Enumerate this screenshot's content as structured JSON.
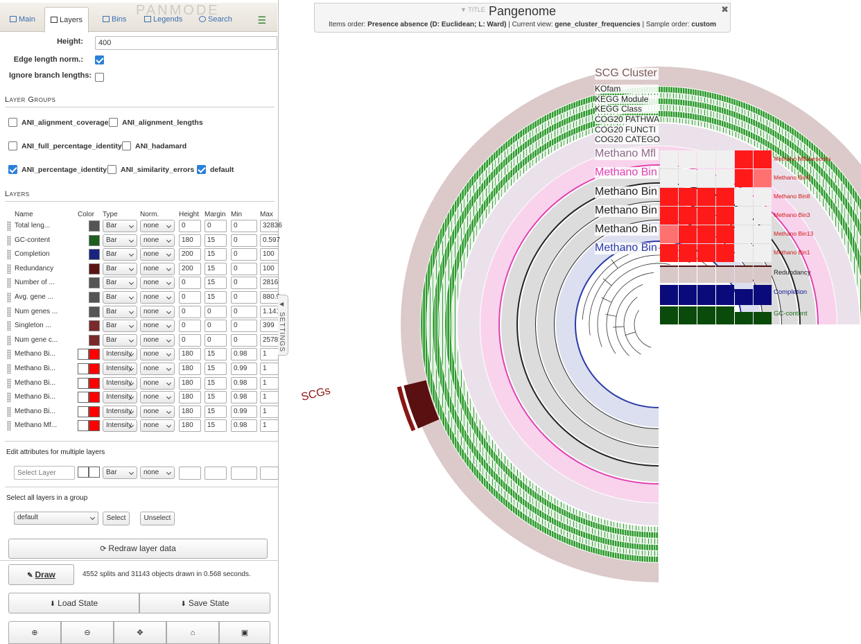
{
  "tabs": [
    {
      "label": "Main",
      "icon": "image-icon"
    },
    {
      "label": "Layers",
      "icon": "layers-icon"
    },
    {
      "label": "Bins",
      "icon": "bins-icon"
    },
    {
      "label": "Legends",
      "icon": "list-icon"
    },
    {
      "label": "Search",
      "icon": "search-icon"
    }
  ],
  "brand": "PANMODE",
  "height": {
    "label": "Height:",
    "value": "400"
  },
  "edge_norm": {
    "label": "Edge length norm.:",
    "checked": true
  },
  "ignore_branch": {
    "label": "Ignore branch lengths:",
    "checked": false
  },
  "layer_groups": {
    "title": "Layer Groups",
    "items": [
      {
        "label": "ANI_alignment_coverage",
        "checked": false
      },
      {
        "label": "ANI_alignment_lengths",
        "checked": false
      },
      {
        "label": "ANI_full_percentage_identity",
        "checked": false
      },
      {
        "label": "ANI_hadamard",
        "checked": false
      },
      {
        "label": "ANI_percentage_identity",
        "checked": true
      },
      {
        "label": "ANI_similarity_errors",
        "checked": false
      },
      {
        "label": "default",
        "checked": true
      }
    ]
  },
  "layers": {
    "title": "Layers",
    "headers": {
      "name": "Name",
      "color": "Color",
      "type": "Type",
      "norm": "Norm.",
      "height": "Height",
      "margin": "Margin",
      "min": "Min",
      "max": "Max"
    },
    "rows": [
      {
        "name": "Total leng...",
        "color": "#555555",
        "type": "Bar",
        "norm": "none",
        "height": "0",
        "margin": "0",
        "min": "0",
        "max": "32836"
      },
      {
        "name": "GC-content",
        "color": "#1e5e1e",
        "type": "Bar",
        "norm": "none",
        "height": "180",
        "margin": "15",
        "min": "0",
        "max": "0.597"
      },
      {
        "name": "Completion",
        "color": "#1a237e",
        "type": "Bar",
        "norm": "none",
        "height": "200",
        "margin": "15",
        "min": "0",
        "max": "100"
      },
      {
        "name": "Redundancy",
        "color": "#5a1414",
        "type": "Bar",
        "norm": "none",
        "height": "200",
        "margin": "15",
        "min": "0",
        "max": "100"
      },
      {
        "name": "Number of ...",
        "color": "#555555",
        "type": "Bar",
        "norm": "none",
        "height": "0",
        "margin": "15",
        "min": "0",
        "max": "2816"
      },
      {
        "name": "Avg. gene ...",
        "color": "#555555",
        "type": "Bar",
        "norm": "none",
        "height": "0",
        "margin": "15",
        "min": "0",
        "max": "880.9"
      },
      {
        "name": "Num genes ...",
        "color": "#555555",
        "type": "Bar",
        "norm": "none",
        "height": "0",
        "margin": "0",
        "min": "0",
        "max": "1.141"
      },
      {
        "name": "Singleton ...",
        "color": "#7a2a2a",
        "type": "Bar",
        "norm": "none",
        "height": "0",
        "margin": "0",
        "min": "0",
        "max": "399"
      },
      {
        "name": "Num gene c...",
        "color": "#7a2a2a",
        "type": "Bar",
        "norm": "none",
        "height": "0",
        "margin": "0",
        "min": "0",
        "max": "2578"
      },
      {
        "name": "Methano Bi...",
        "color": "#ff0000",
        "type": "Intensity",
        "norm": "none",
        "height": "180",
        "margin": "15",
        "min": "0.98",
        "max": "1"
      },
      {
        "name": "Methano Bi...",
        "color": "#ff0000",
        "type": "Intensity",
        "norm": "none",
        "height": "180",
        "margin": "15",
        "min": "0.99",
        "max": "1"
      },
      {
        "name": "Methano Bi...",
        "color": "#ff0000",
        "type": "Intensity",
        "norm": "none",
        "height": "180",
        "margin": "15",
        "min": "0.98",
        "max": "1"
      },
      {
        "name": "Methano Bi...",
        "color": "#ff0000",
        "type": "Intensity",
        "norm": "none",
        "height": "180",
        "margin": "15",
        "min": "0.98",
        "max": "1"
      },
      {
        "name": "Methano Bi...",
        "color": "#ff0000",
        "type": "Intensity",
        "norm": "none",
        "height": "180",
        "margin": "15",
        "min": "0.99",
        "max": "1"
      },
      {
        "name": "Methano Mf...",
        "color": "#ff0000",
        "type": "Intensity",
        "norm": "none",
        "height": "180",
        "margin": "15",
        "min": "0.98",
        "max": "1"
      }
    ]
  },
  "multi_edit": {
    "title": "Edit attributes for multiple layers",
    "placeholder": "Select Layer",
    "type": "Bar",
    "norm": "none"
  },
  "select_group": {
    "title": "Select all layers in a group",
    "value": "default",
    "select_label": "Select",
    "unselect_label": "Unselect"
  },
  "redraw_label": "Redraw layer data",
  "draw_label": "Draw",
  "draw_status": "4552 splits and 31143 objects drawn in 0.568 seconds.",
  "load_label": "Load State",
  "save_label": "Save State",
  "zoom_icons": [
    "zoom-in-icon",
    "zoom-out-icon",
    "center-icon",
    "fit-icon",
    "save-svg-icon"
  ],
  "settings_label": "SETTINGS",
  "title_box": {
    "hint": "▼ TITLE",
    "title": "Pangenome",
    "items_order_label": "Items order:",
    "items_order": "Presence absence (D: Euclidean; L: Ward)",
    "current_view_label": "| Current view:",
    "current_view": "gene_cluster_frequencies",
    "sample_order_label": "| Sample order:",
    "sample_order": "custom"
  },
  "ring_labels": [
    {
      "text": "SCG Cluster",
      "color": "#7a5a5a"
    },
    {
      "text": "KOfam",
      "color": "#222222"
    },
    {
      "text": "KEGG Module",
      "color": "#222222"
    },
    {
      "text": "KEGG Class",
      "color": "#222222"
    },
    {
      "text": "COG20 PATHWA",
      "color": "#222222"
    },
    {
      "text": "COG20 FUNCTI",
      "color": "#222222"
    },
    {
      "text": "COG20 CATEGO",
      "color": "#222222"
    },
    {
      "text": "Methano Mfl",
      "color": "#8a6a8a"
    },
    {
      "text": "Methano Bin",
      "color": "#e040b0"
    },
    {
      "text": "Methano Bin",
      "color": "#222222"
    },
    {
      "text": "Methano Bin",
      "color": "#222222"
    },
    {
      "text": "Methano Bin",
      "color": "#222222"
    },
    {
      "text": "Methano Bin",
      "color": "#2a3aa8"
    }
  ],
  "heatmap": {
    "labels": [
      "Methano Mflavescens",
      "Methano Bin9",
      "Methano Bin8",
      "Methano Bin3",
      "Methano Bin13",
      "Methano Bin1"
    ],
    "values": [
      [
        0.94,
        0.94,
        0.94,
        0.94,
        1.0,
        1.0
      ],
      [
        0.94,
        0.94,
        0.94,
        0.94,
        1.0,
        0.75
      ],
      [
        1.0,
        1.0,
        1.0,
        1.0,
        0.94,
        0.94
      ],
      [
        1.0,
        1.0,
        1.0,
        1.0,
        0.94,
        0.94
      ],
      [
        0.7,
        1.0,
        1.0,
        1.0,
        0.94,
        0.94
      ],
      [
        1.0,
        1.0,
        1.0,
        1.0,
        0.94,
        0.94
      ]
    ]
  },
  "redundancy_label": "Redundancy",
  "completion_label": "Completion",
  "gc_label": "GC-content",
  "scg_label": "SCGs"
}
